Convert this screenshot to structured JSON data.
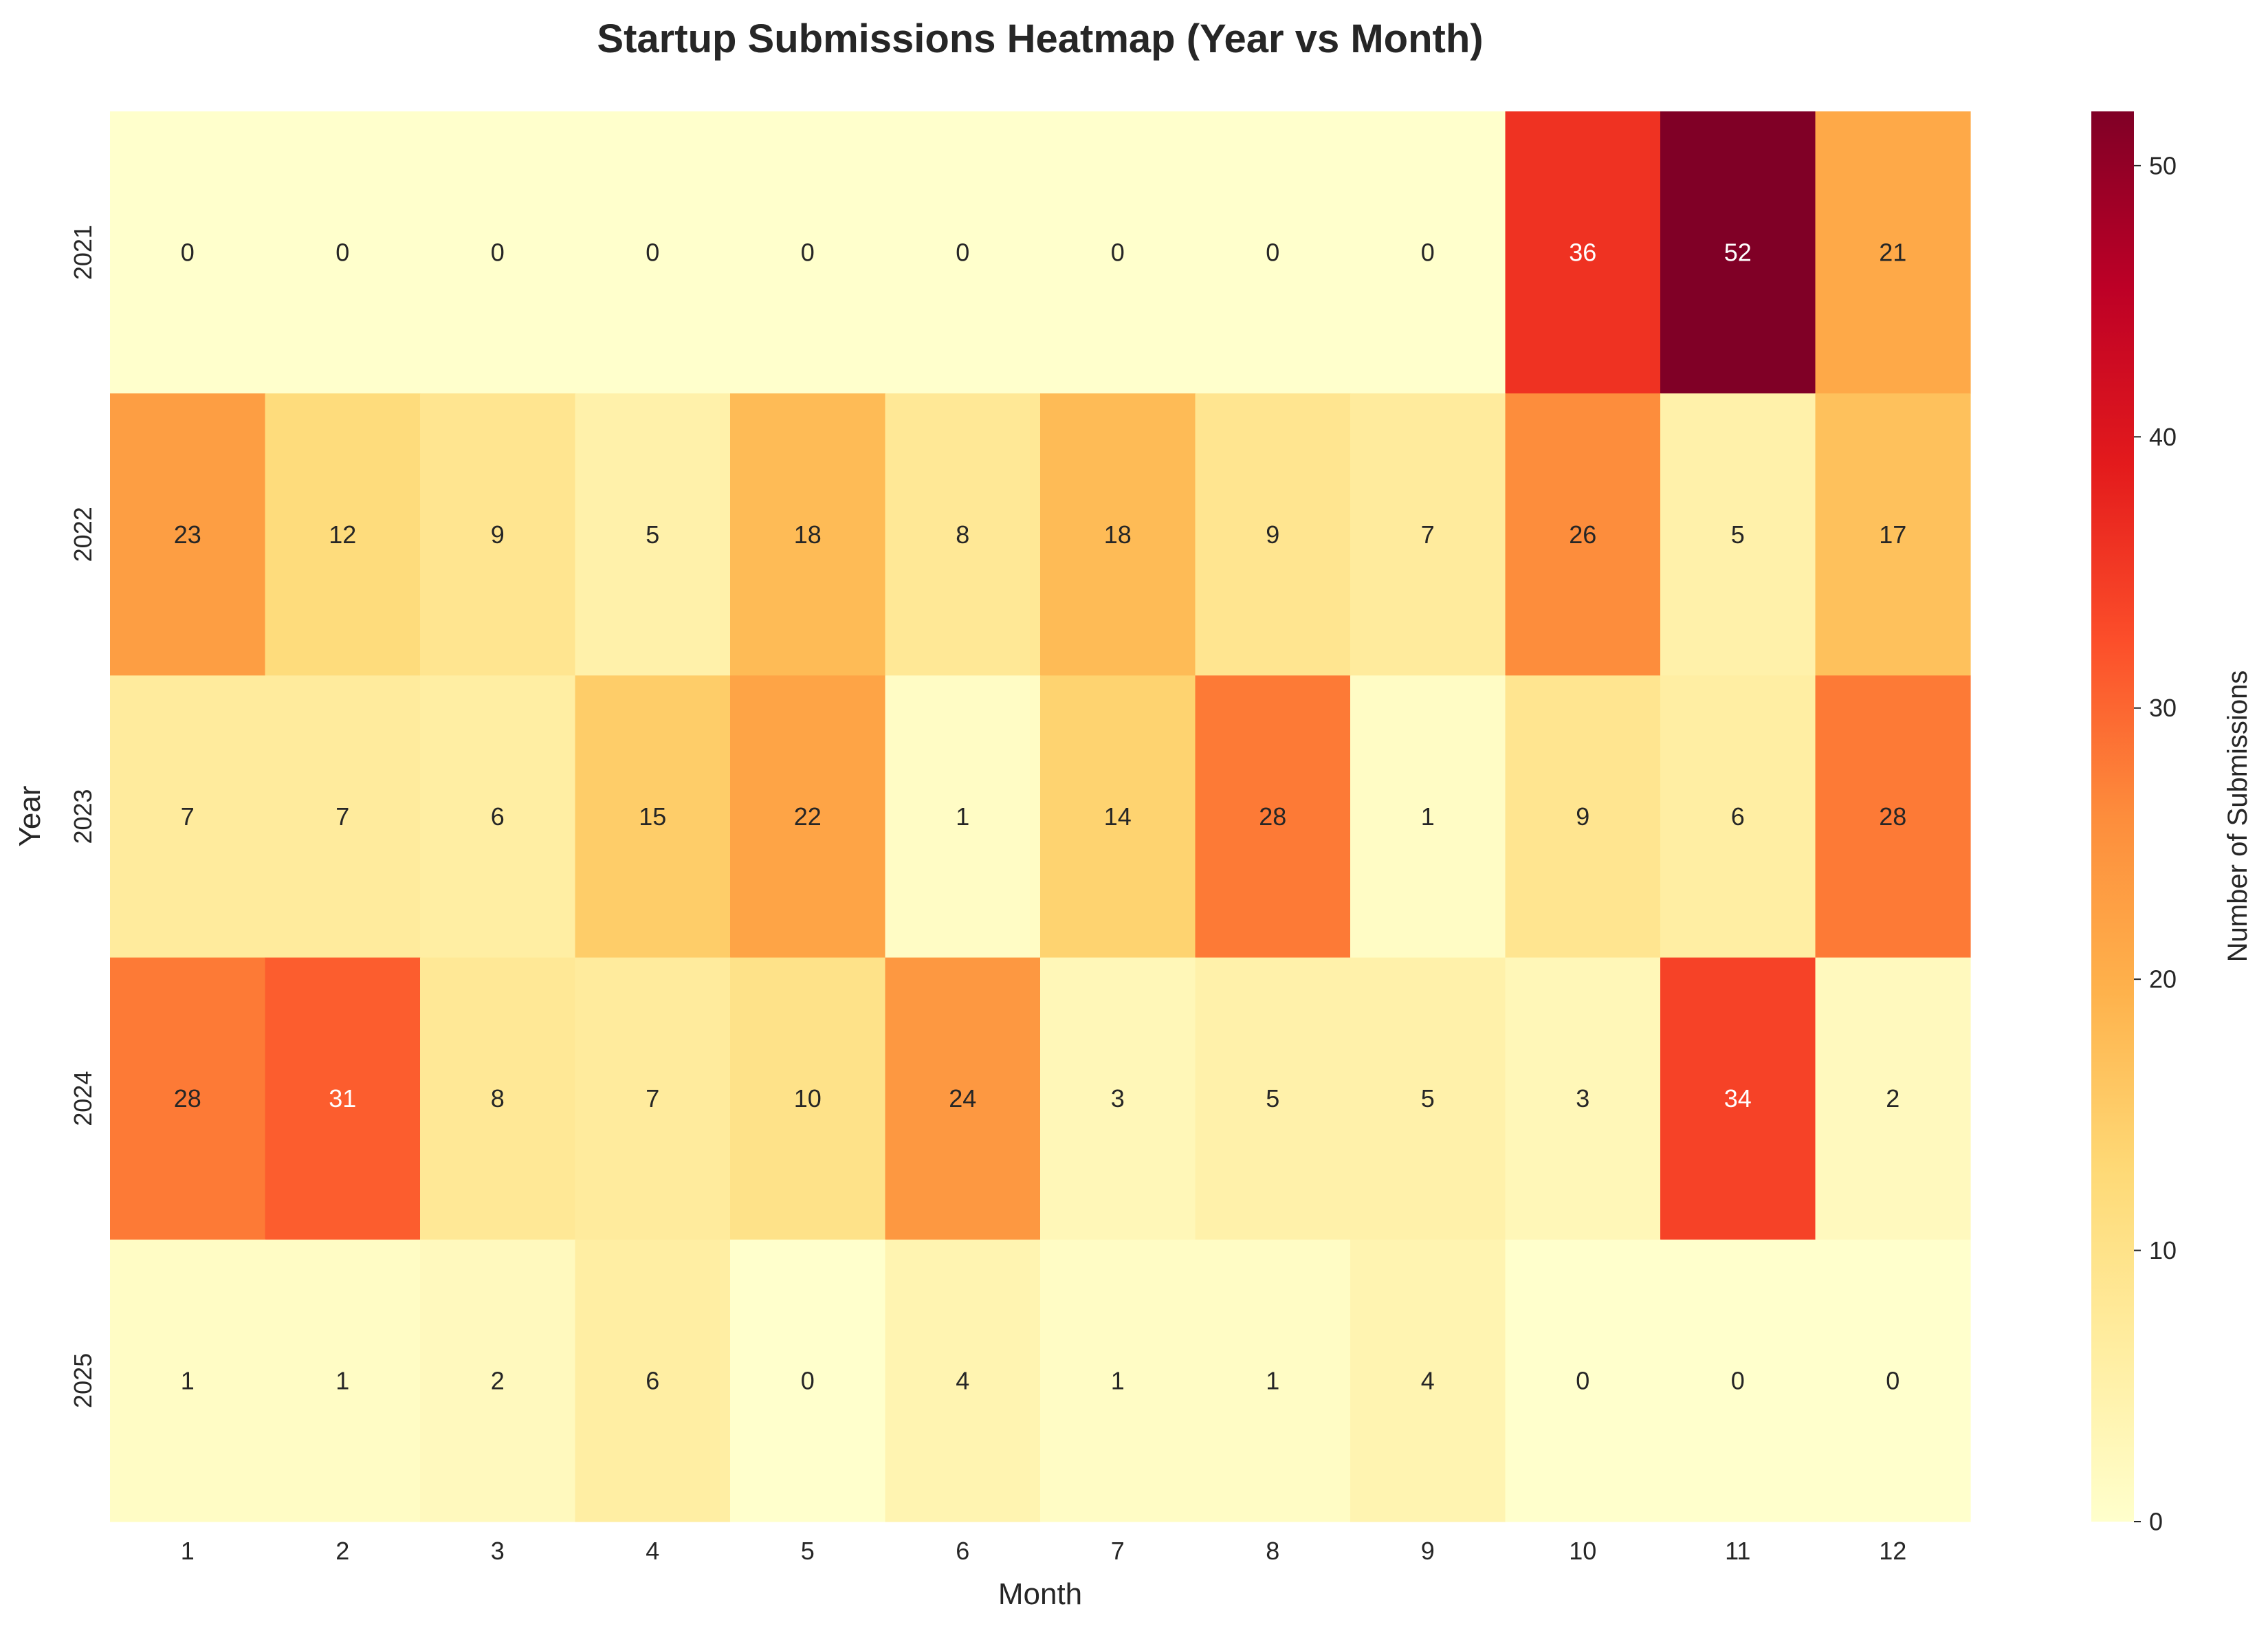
{
  "chart_data": {
    "type": "heatmap",
    "title": "Startup Submissions Heatmap (Year vs Month)",
    "xlabel": "Month",
    "ylabel": "Year",
    "x_categories": [
      "1",
      "2",
      "3",
      "4",
      "5",
      "6",
      "7",
      "8",
      "9",
      "10",
      "11",
      "12"
    ],
    "y_categories": [
      "2021",
      "2022",
      "2023",
      "2024",
      "2025"
    ],
    "values": [
      [
        0,
        0,
        0,
        0,
        0,
        0,
        0,
        0,
        0,
        36,
        52,
        21
      ],
      [
        23,
        12,
        9,
        5,
        18,
        8,
        18,
        9,
        7,
        26,
        5,
        17
      ],
      [
        7,
        7,
        6,
        15,
        22,
        1,
        14,
        28,
        1,
        9,
        6,
        28
      ],
      [
        28,
        31,
        8,
        7,
        10,
        24,
        3,
        5,
        5,
        3,
        34,
        2
      ],
      [
        1,
        1,
        2,
        6,
        0,
        4,
        1,
        1,
        4,
        0,
        0,
        0
      ]
    ],
    "colorbar": {
      "label": "Number of Submissions",
      "min": 0,
      "max": 52,
      "ticks": [
        0,
        10,
        20,
        30,
        40,
        50
      ],
      "colormap": "YlOrRd",
      "colors": [
        "#ffffcc",
        "#ffeda0",
        "#fed976",
        "#feb24c",
        "#fd8d3c",
        "#fc4e2a",
        "#e31a1c",
        "#bd0026",
        "#800026"
      ]
    },
    "annotations": "cell values shown in each cell"
  }
}
